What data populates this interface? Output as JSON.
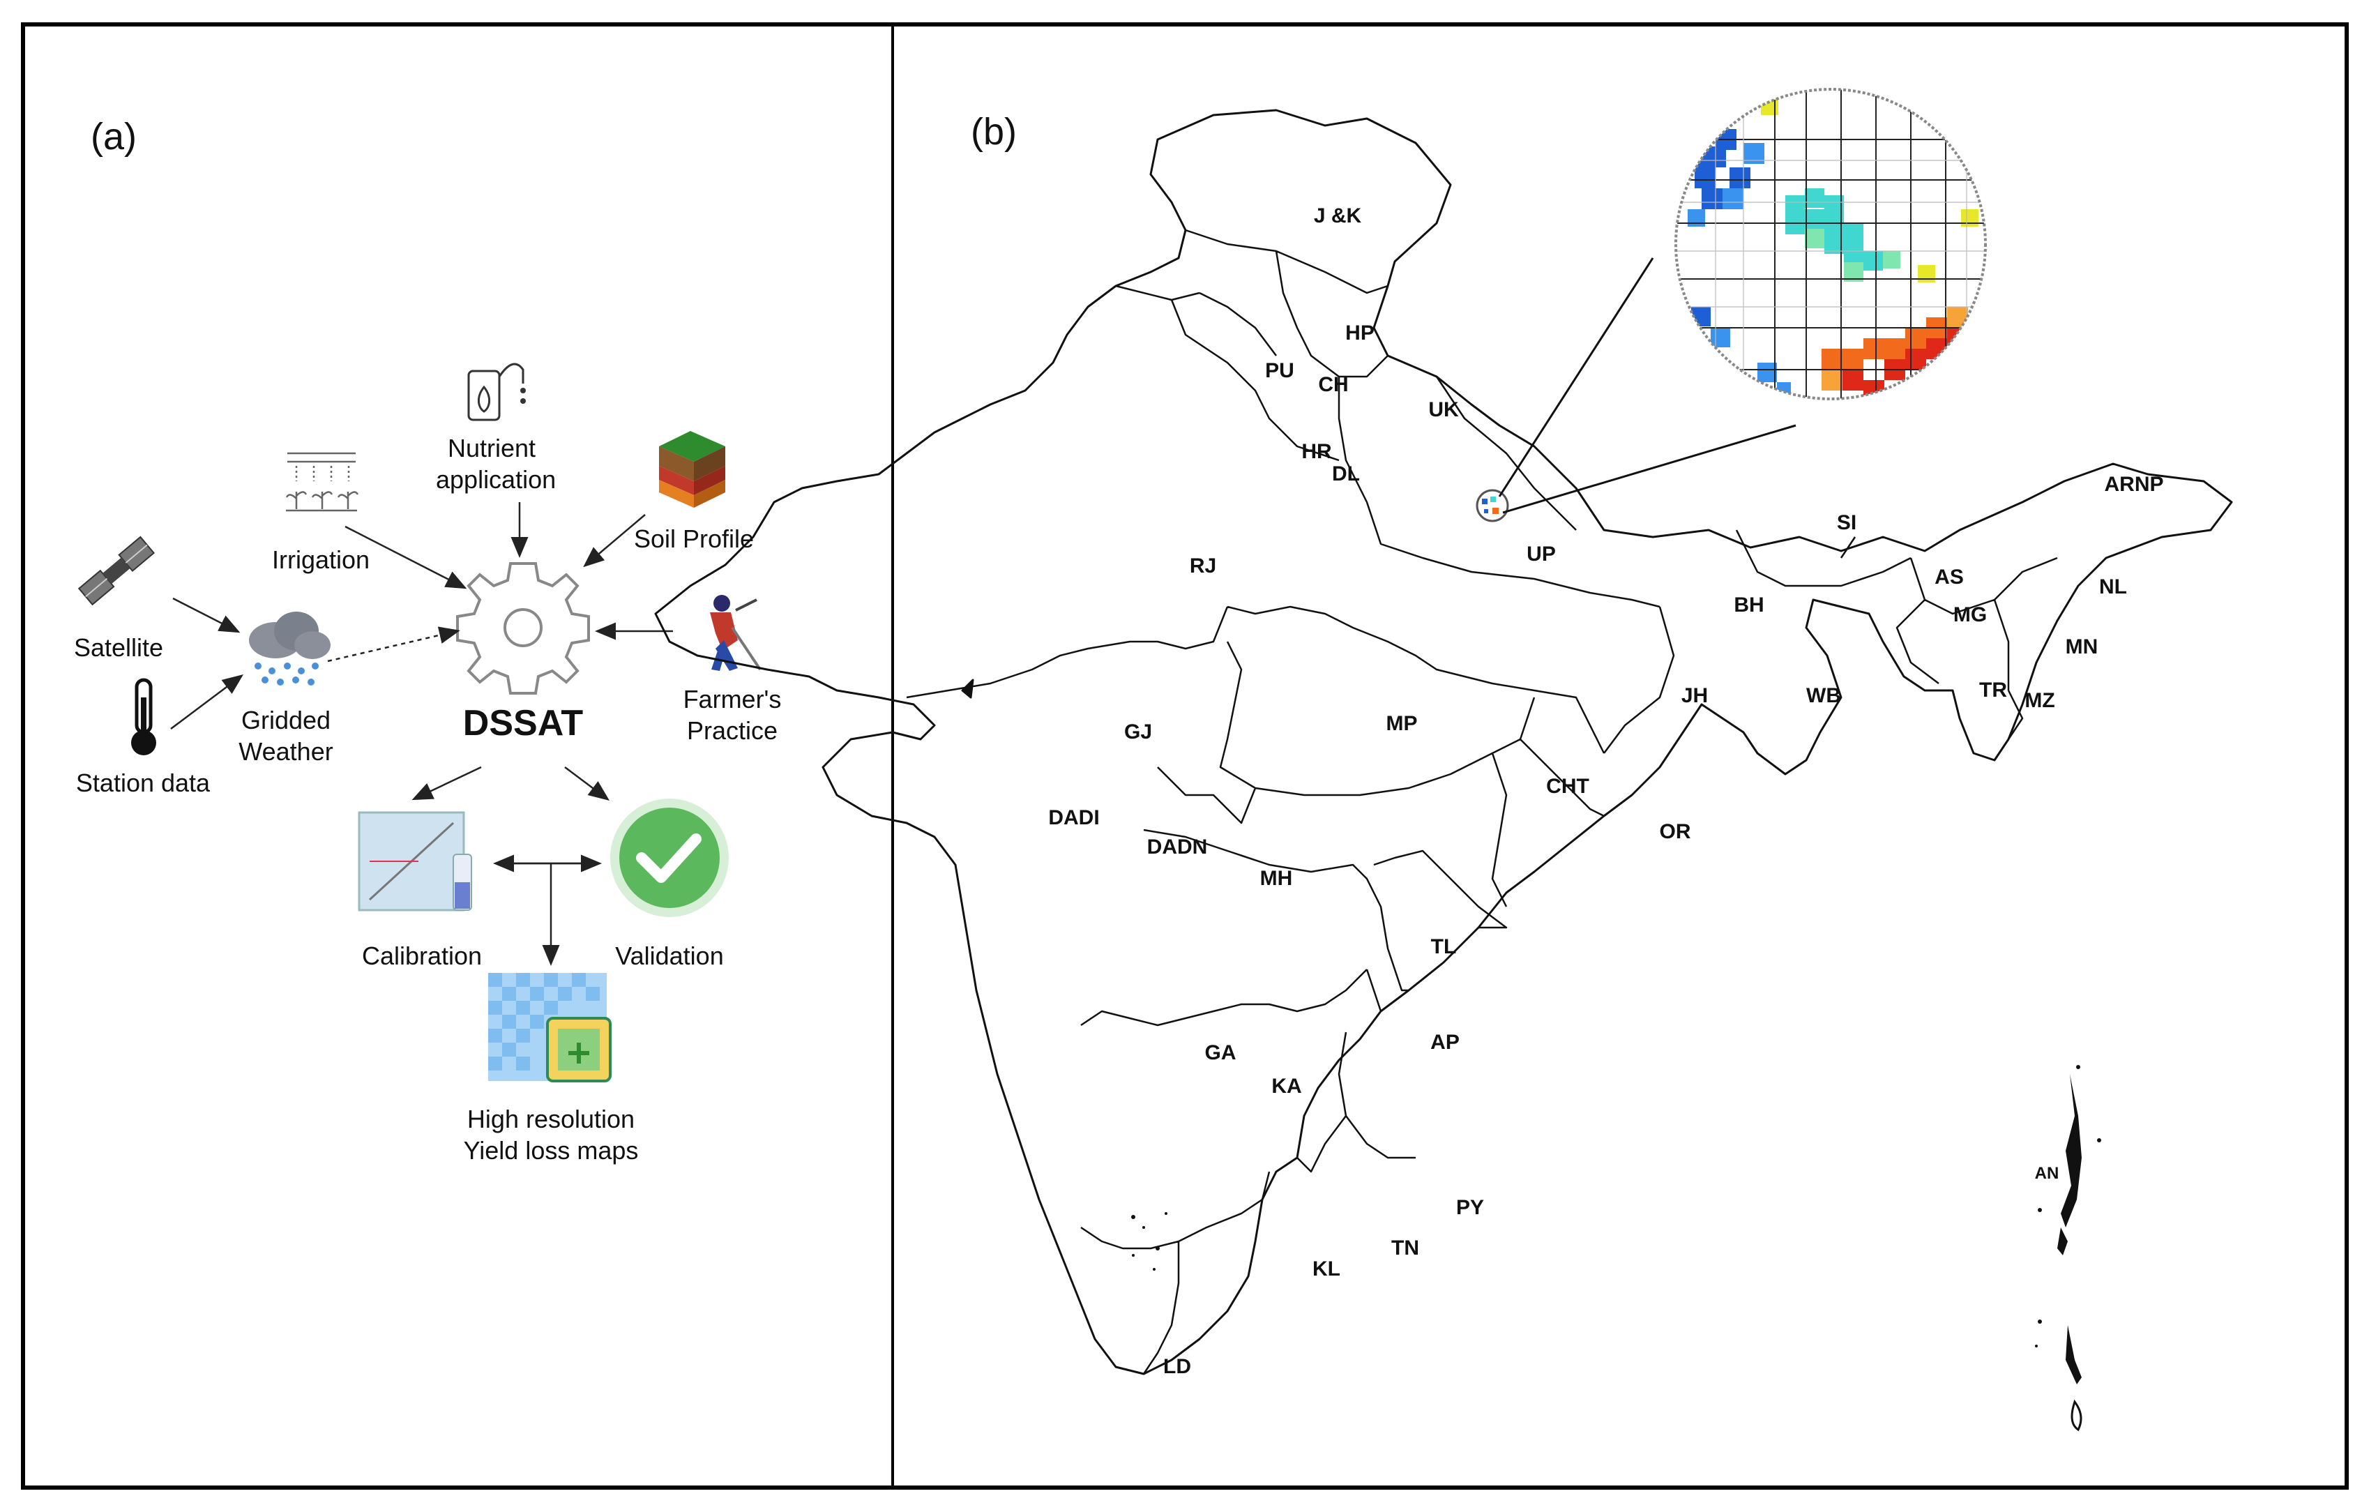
{
  "panel_a": {
    "label": "(a)",
    "nodes": {
      "nutrient_line1": "Nutrient",
      "nutrient_line2": "application",
      "irrigation": "Irrigation",
      "soil": "Soil Profile",
      "satellite": "Satellite",
      "station": "Station data",
      "gridded_line1": "Gridded",
      "gridded_line2": "Weather",
      "dssat": "DSSAT",
      "farmer_line1": "Farmer's",
      "farmer_line2": "Practice",
      "calibration": "Calibration",
      "validation": "Validation",
      "maps_line1": "High resolution",
      "maps_line2": "Yield loss maps"
    }
  },
  "panel_b": {
    "label": "(b)",
    "states": {
      "jk": "J &K",
      "hp": "HP",
      "pu": "PU",
      "ch": "CH",
      "uk": "UK",
      "hr": "HR",
      "dl": "DL",
      "rj": "RJ",
      "up": "UP",
      "bh": "BH",
      "si": "SI",
      "arnp": "ARNP",
      "as": "AS",
      "nl": "NL",
      "mg": "MG",
      "mn": "MN",
      "tr": "TR",
      "mz": "MZ",
      "gj": "GJ",
      "mp": "MP",
      "jh": "JH",
      "wb": "WB",
      "dadi": "DADI",
      "dadn": "DADN",
      "cht": "CHT",
      "or": "OR",
      "mh": "MH",
      "tl": "TL",
      "ga": "GA",
      "ka": "KA",
      "ap": "AP",
      "py": "PY",
      "tn": "TN",
      "kl": "KL",
      "ld": "LD",
      "an": "AN"
    }
  },
  "colors": {
    "frame": "#000000",
    "arrow": "#222222",
    "check_green": "#5cb85c",
    "inset_blue": "#1f5fd6",
    "inset_cyan": "#3fd7d0",
    "inset_orange": "#f26b1d",
    "inset_red": "#e02818",
    "inset_yellow": "#e8e82a"
  }
}
